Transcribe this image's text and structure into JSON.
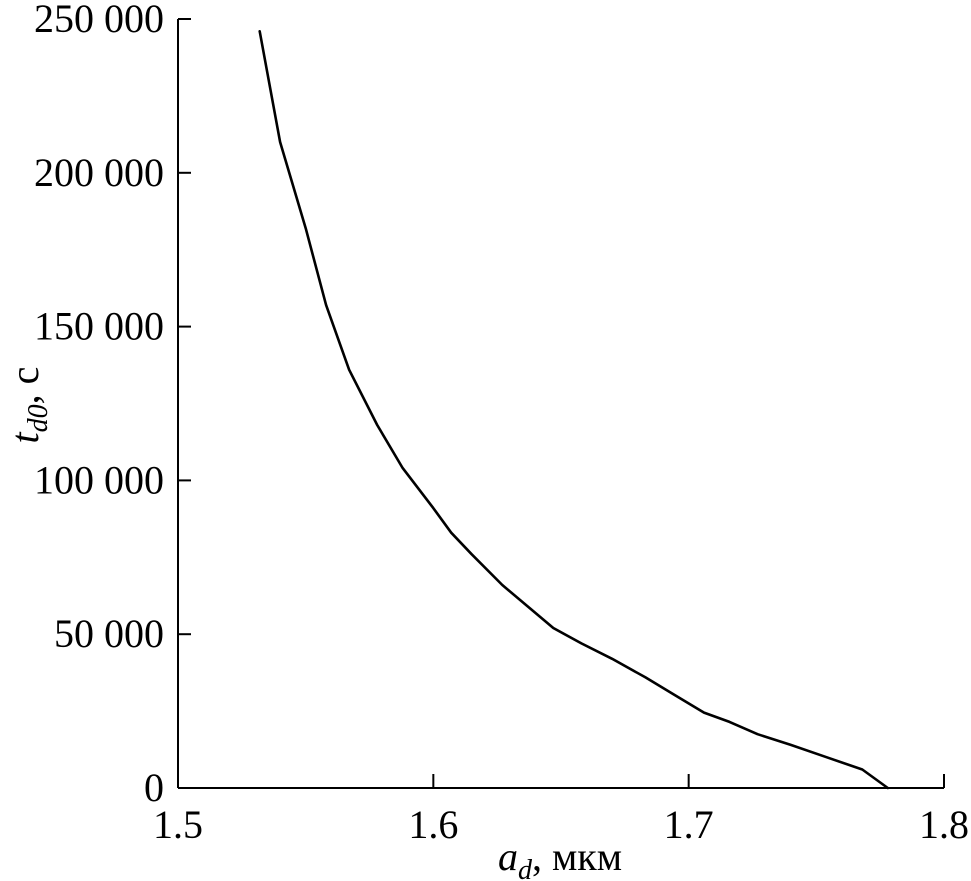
{
  "chart_data": {
    "type": "line",
    "title": "",
    "xlabel": {
      "main": "a",
      "sub": "d",
      "unit": ", мкм"
    },
    "ylabel": {
      "main": "t",
      "sub": "d0",
      "unit": ", с"
    },
    "xlim": [
      1.5,
      1.8
    ],
    "ylim": [
      0,
      250000
    ],
    "grid": false,
    "xticks": [
      {
        "value": 1.5,
        "label": "1.5"
      },
      {
        "value": 1.6,
        "label": "1.6"
      },
      {
        "value": 1.7,
        "label": "1.7"
      },
      {
        "value": 1.8,
        "label": "1.8"
      }
    ],
    "yticks": [
      {
        "value": 0,
        "label": "0"
      },
      {
        "value": 50000,
        "label": "50 000"
      },
      {
        "value": 100000,
        "label": "100 000"
      },
      {
        "value": 150000,
        "label": "150 000"
      },
      {
        "value": 200000,
        "label": "200 000"
      },
      {
        "value": 250000,
        "label": "250 000"
      }
    ],
    "series": [
      {
        "x": [
          1.532,
          1.54,
          1.55,
          1.558,
          1.567,
          1.578,
          1.588,
          1.6,
          1.607,
          1.615,
          1.627,
          1.637,
          1.647,
          1.658,
          1.67,
          1.683,
          1.695,
          1.706,
          1.716,
          1.727,
          1.74,
          1.754,
          1.768,
          1.778
        ],
        "y": [
          246000,
          210000,
          182000,
          157000,
          136000,
          118000,
          104000,
          91000,
          83000,
          76000,
          66000,
          59000,
          52000,
          47000,
          42000,
          36000,
          30000,
          24500,
          21500,
          17500,
          14000,
          10000,
          6000,
          0
        ]
      }
    ]
  }
}
